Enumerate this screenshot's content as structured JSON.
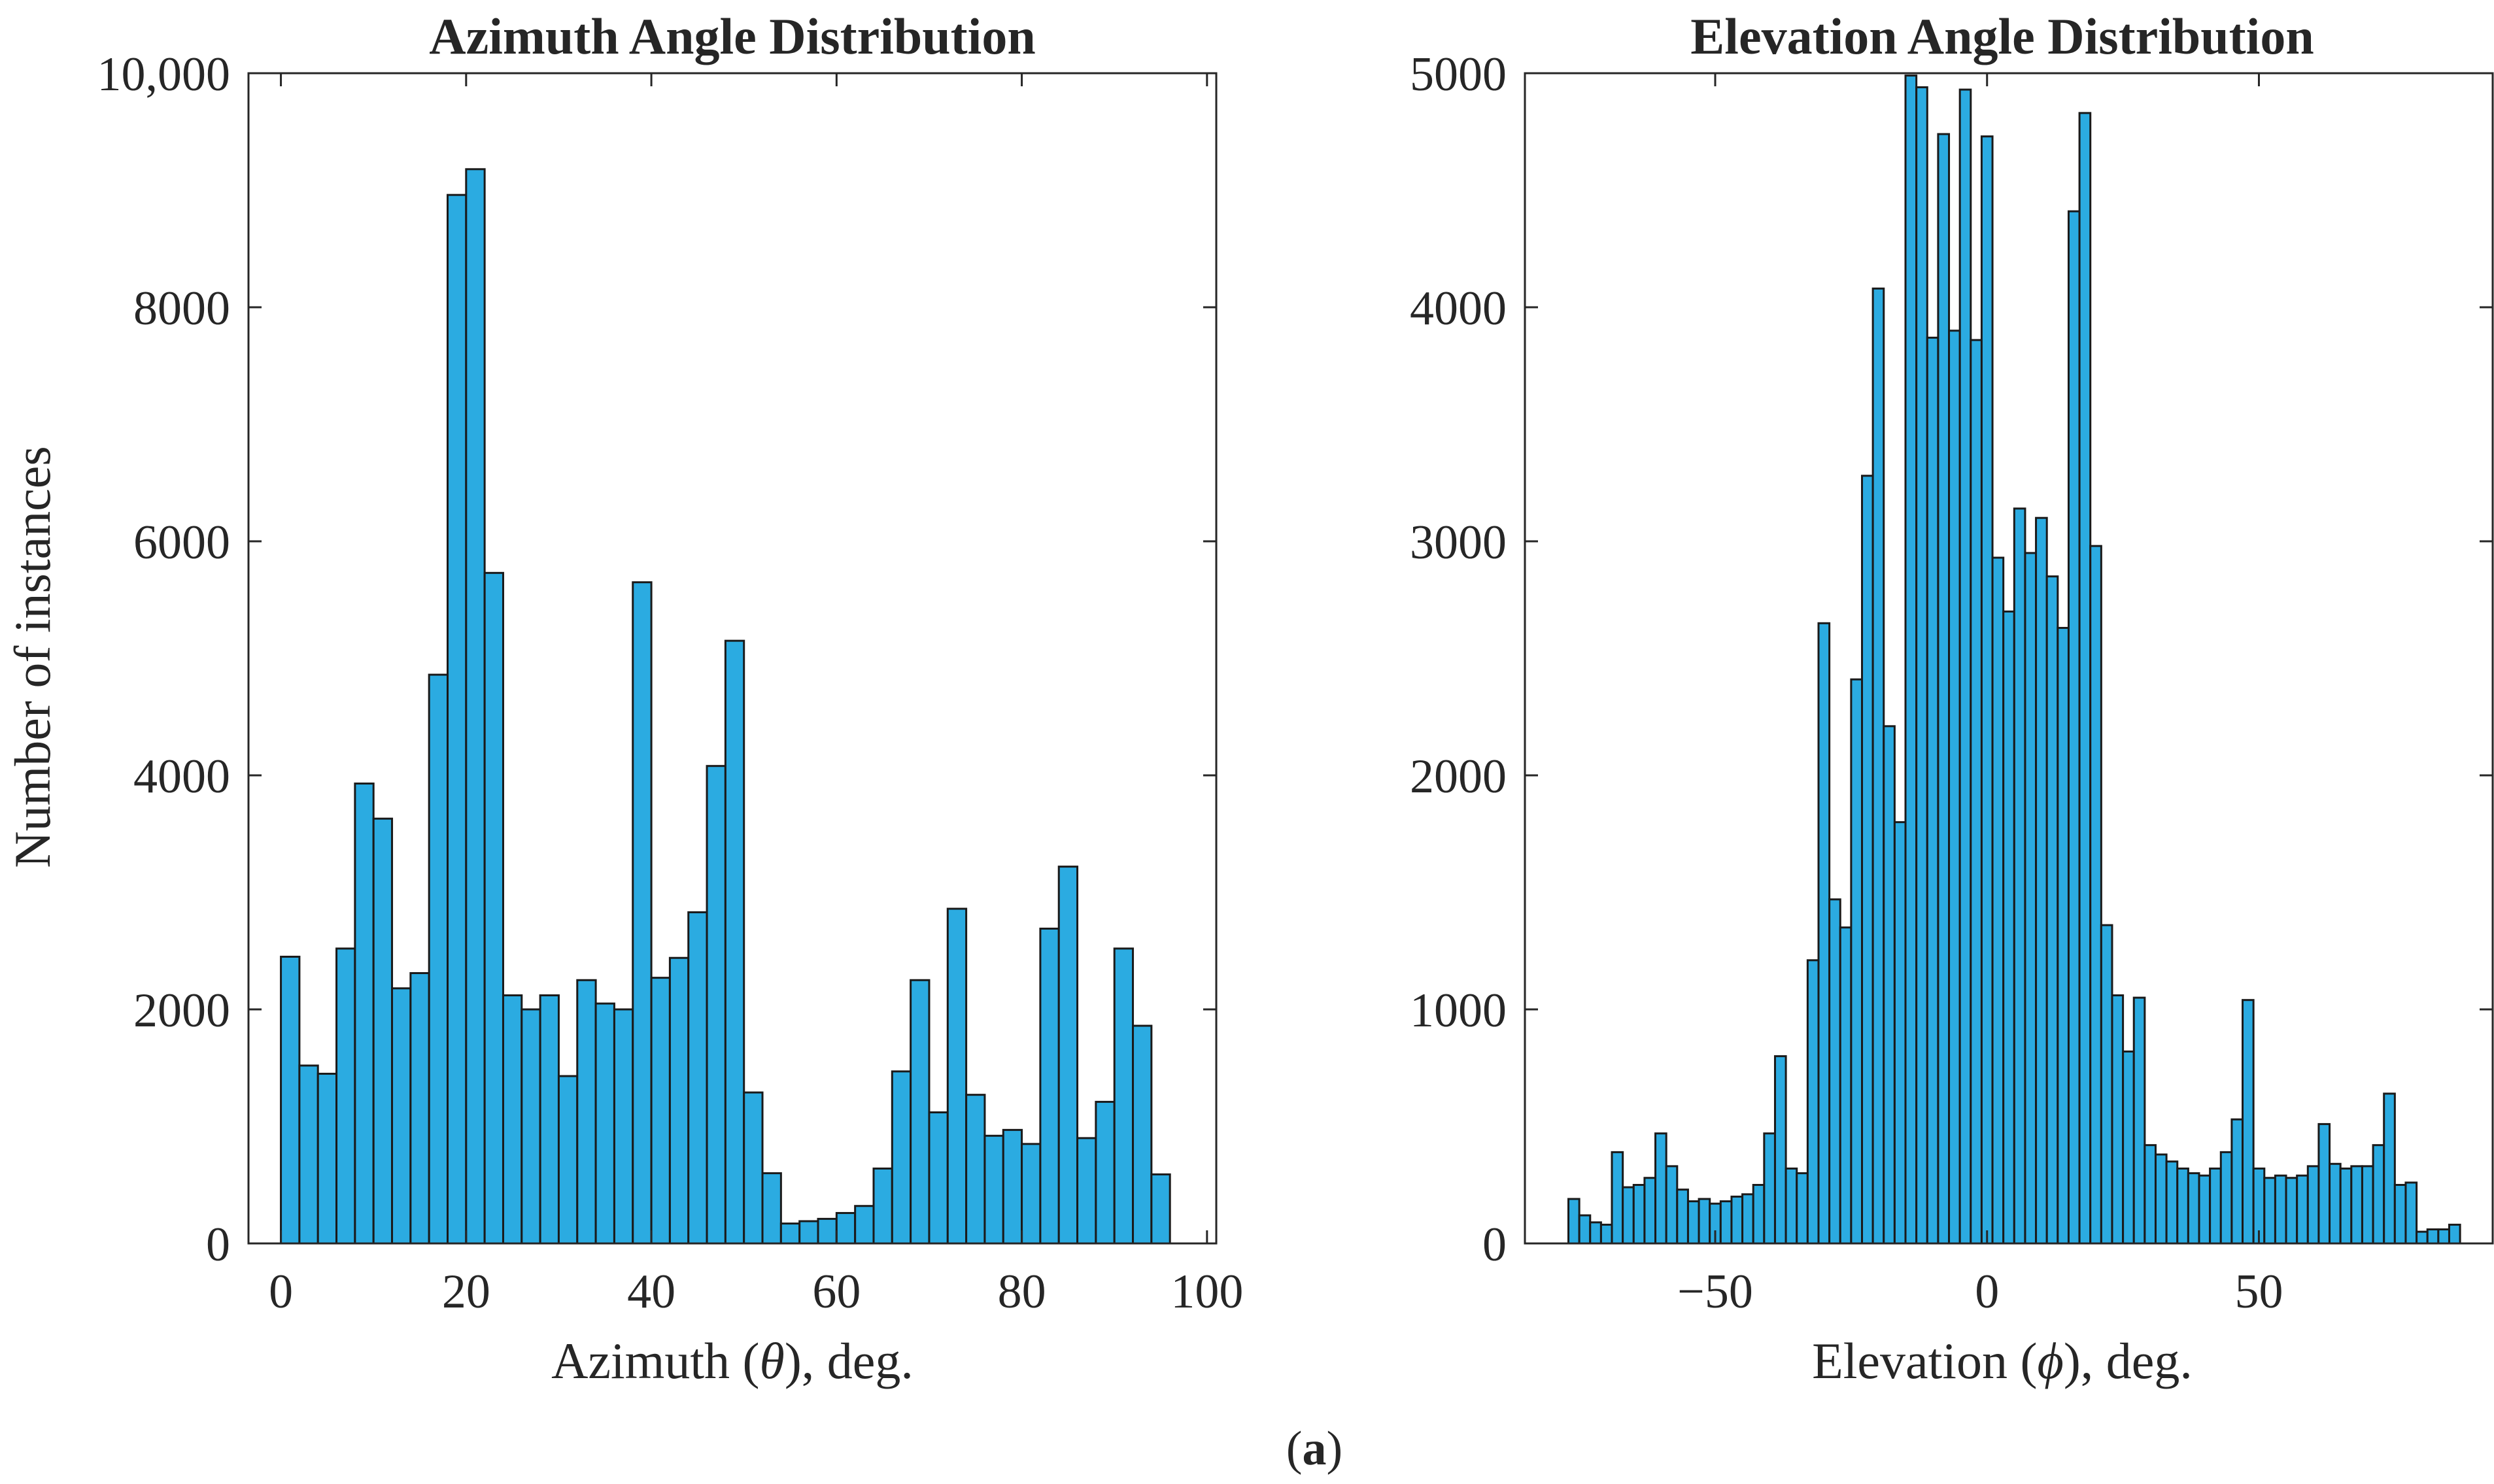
{
  "figure": {
    "caption_label": "a",
    "caption_open": "(",
    "caption_close": ")",
    "bar_color": "#2BABE1",
    "edge_color": "#1A1A1A"
  },
  "chart_data": [
    {
      "type": "bar",
      "title": "Azimuth Angle Distribution",
      "xlabel_prefix": "Azimuth (",
      "xlabel_symbol": "θ",
      "xlabel_suffix": "), deg.",
      "ylabel": "Number of instances",
      "xlim": [
        -3.5,
        101
      ],
      "ylim": [
        0,
        10000
      ],
      "bin_start": 0,
      "bin_width": 2,
      "x_ticks": [
        0,
        20,
        40,
        60,
        80,
        100
      ],
      "x_tick_labels": [
        "0",
        "20",
        "40",
        "60",
        "80",
        "100"
      ],
      "y_ticks": [
        0,
        2000,
        4000,
        6000,
        8000,
        10000
      ],
      "y_tick_labels": [
        "0",
        "2000",
        "4000",
        "6000",
        "8000",
        "10,000"
      ],
      "values": [
        2450,
        1520,
        1450,
        2520,
        3930,
        3630,
        2180,
        2310,
        4860,
        8960,
        9180,
        5730,
        2120,
        2000,
        2120,
        1430,
        2250,
        2050,
        2000,
        5650,
        2270,
        2440,
        2830,
        4080,
        5150,
        1290,
        600,
        170,
        190,
        210,
        260,
        320,
        640,
        1470,
        2250,
        1120,
        2860,
        1270,
        920,
        970,
        850,
        2690,
        3220,
        900,
        1210,
        2520,
        1860,
        590
      ]
    },
    {
      "type": "bar",
      "title": "Elevation Angle Distribution",
      "xlabel_prefix": "Elevation (",
      "xlabel_symbol": "ϕ",
      "xlabel_suffix": "), deg.",
      "ylabel": "",
      "xlim": [
        -85,
        93
      ],
      "ylim": [
        0,
        5000
      ],
      "bin_start": -77,
      "bin_width": 2,
      "x_ticks": [
        -50,
        0,
        50
      ],
      "x_tick_labels": [
        "−50",
        "0",
        "50"
      ],
      "y_ticks": [
        0,
        1000,
        2000,
        3000,
        4000,
        5000
      ],
      "y_tick_labels": [
        "0",
        "1000",
        "2000",
        "3000",
        "4000",
        "5000"
      ],
      "values": [
        190,
        120,
        90,
        80,
        390,
        240,
        250,
        280,
        470,
        330,
        230,
        180,
        190,
        170,
        180,
        200,
        210,
        250,
        470,
        800,
        320,
        300,
        1210,
        2650,
        1470,
        1350,
        2410,
        3280,
        4080,
        2210,
        1800,
        4990,
        4940,
        3870,
        4740,
        3900,
        4930,
        3860,
        4730,
        2930,
        2700,
        3140,
        2950,
        3100,
        2850,
        2630,
        4410,
        4830,
        2980,
        1360,
        1060,
        820,
        1050,
        420,
        380,
        350,
        320,
        300,
        290,
        320,
        390,
        530,
        1040,
        320,
        280,
        290,
        280,
        290,
        330,
        510,
        340,
        320,
        330,
        330,
        420,
        640,
        250,
        260,
        50,
        60,
        60,
        80
      ]
    }
  ]
}
